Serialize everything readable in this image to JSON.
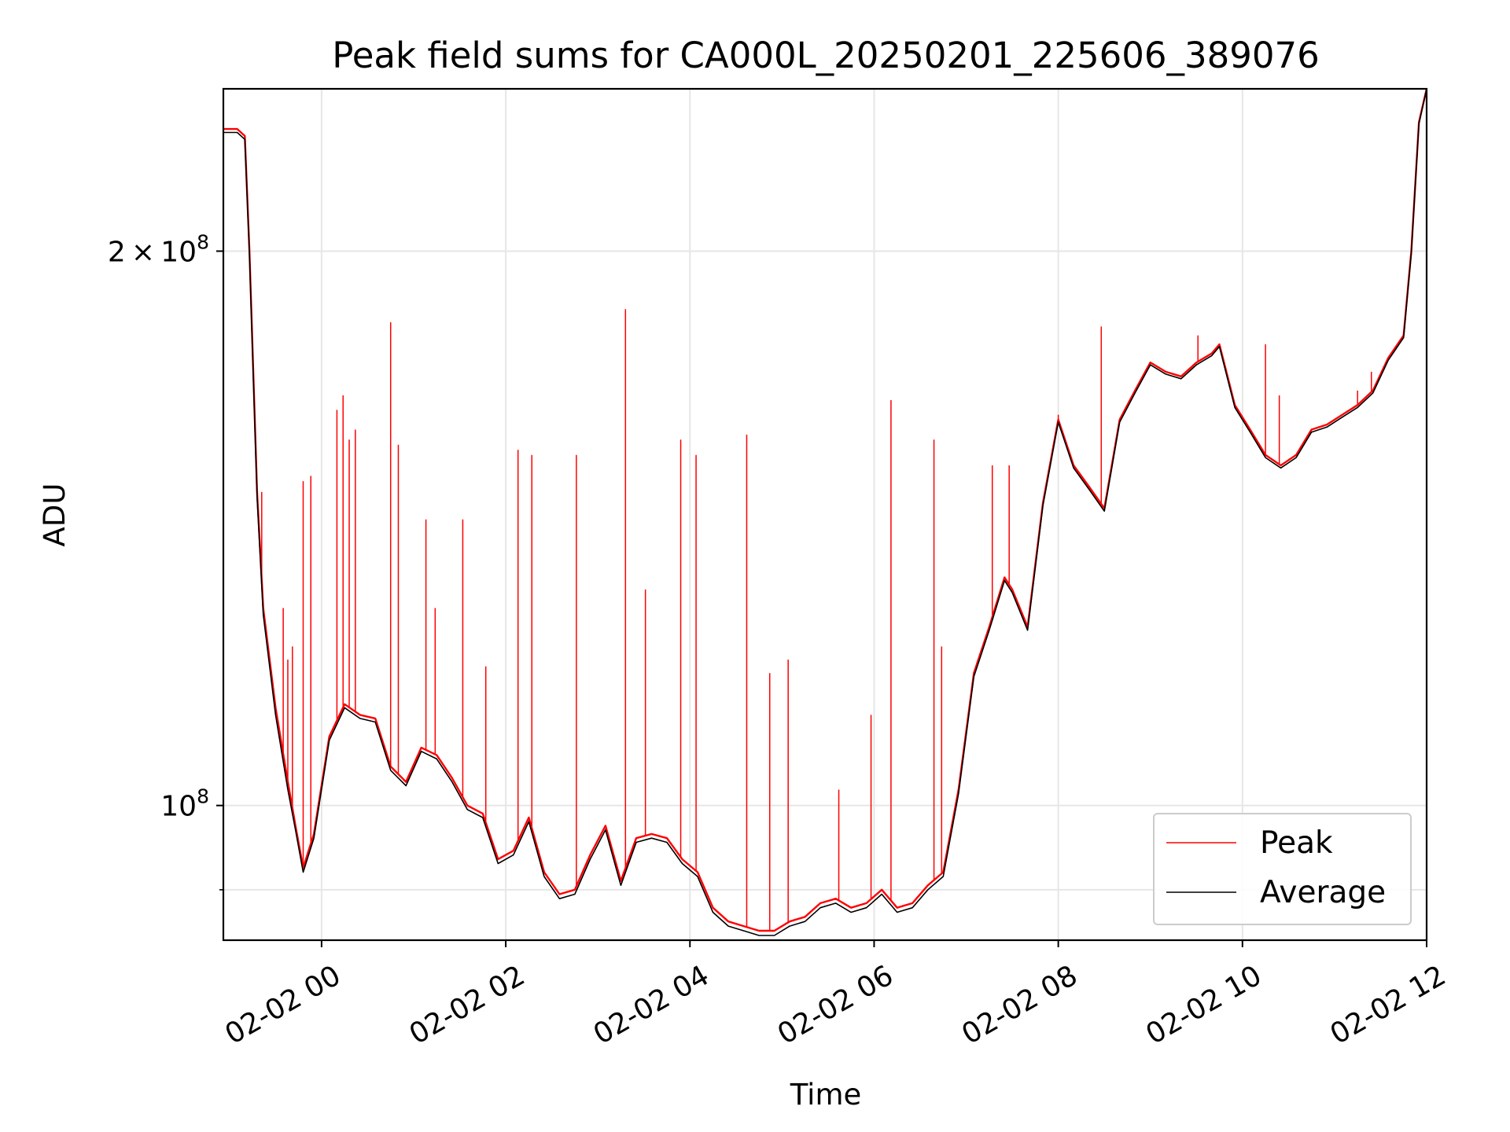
{
  "chart_data": {
    "type": "line",
    "title": "Peak field sums for CA000L_20250201_225606_389076",
    "xlabel": "Time",
    "ylabel": "ADU",
    "yscale": "log",
    "grid": true,
    "legend_position": "lower-right",
    "x_range": [
      "2025-02-01 22:56",
      "2025-02-02 12:00"
    ],
    "ylim": [
      84500000,
      245000000
    ],
    "xticks": [
      "02-02 00",
      "02-02 02",
      "02-02 04",
      "02-02 06",
      "02-02 08",
      "02-02 10",
      "02-02 12"
    ],
    "xtick_times": [
      "2025-02-02 00:00",
      "2025-02-02 02:00",
      "2025-02-02 04:00",
      "2025-02-02 06:00",
      "2025-02-02 08:00",
      "2025-02-02 10:00",
      "2025-02-02 12:00"
    ],
    "yticks": [
      {
        "value": 200000000,
        "mantissa": "2",
        "times": "×",
        "base": "10",
        "exp": "8"
      },
      {
        "value": 100000000,
        "mantissa": "",
        "times": "",
        "base": "10",
        "exp": "8"
      }
    ],
    "series": [
      {
        "name": "Peak",
        "color": "#ff0000",
        "x": [
          "2025-02-01 22:56",
          "2025-02-01 23:05",
          "2025-02-01 23:10",
          "2025-02-01 23:13",
          "2025-02-01 23:18",
          "2025-02-01 23:22",
          "2025-02-01 23:30",
          "2025-02-01 23:38",
          "2025-02-01 23:43",
          "2025-02-01 23:48",
          "2025-02-01 23:55",
          "2025-02-02 00:05",
          "2025-02-02 00:15",
          "2025-02-02 00:25",
          "2025-02-02 00:35",
          "2025-02-02 00:45",
          "2025-02-02 00:55",
          "2025-02-02 01:05",
          "2025-02-02 01:15",
          "2025-02-02 01:25",
          "2025-02-02 01:35",
          "2025-02-02 01:45",
          "2025-02-02 01:55",
          "2025-02-02 02:05",
          "2025-02-02 02:15",
          "2025-02-02 02:25",
          "2025-02-02 02:35",
          "2025-02-02 02:45",
          "2025-02-02 02:55",
          "2025-02-02 03:05",
          "2025-02-02 03:15",
          "2025-02-02 03:25",
          "2025-02-02 03:35",
          "2025-02-02 03:45",
          "2025-02-02 03:55",
          "2025-02-02 04:05",
          "2025-02-02 04:15",
          "2025-02-02 04:25",
          "2025-02-02 04:35",
          "2025-02-02 04:45",
          "2025-02-02 04:55",
          "2025-02-02 05:05",
          "2025-02-02 05:15",
          "2025-02-02 05:25",
          "2025-02-02 05:35",
          "2025-02-02 05:45",
          "2025-02-02 05:55",
          "2025-02-02 06:05",
          "2025-02-02 06:15",
          "2025-02-02 06:25",
          "2025-02-02 06:35",
          "2025-02-02 06:45",
          "2025-02-02 06:55",
          "2025-02-02 07:05",
          "2025-02-02 07:15",
          "2025-02-02 07:25",
          "2025-02-02 07:30",
          "2025-02-02 07:40",
          "2025-02-02 07:50",
          "2025-02-02 08:00",
          "2025-02-02 08:10",
          "2025-02-02 08:20",
          "2025-02-02 08:30",
          "2025-02-02 08:40",
          "2025-02-02 08:50",
          "2025-02-02 09:00",
          "2025-02-02 09:10",
          "2025-02-02 09:20",
          "2025-02-02 09:30",
          "2025-02-02 09:40",
          "2025-02-02 09:45",
          "2025-02-02 09:55",
          "2025-02-02 10:05",
          "2025-02-02 10:15",
          "2025-02-02 10:25",
          "2025-02-02 10:35",
          "2025-02-02 10:45",
          "2025-02-02 10:55",
          "2025-02-02 11:05",
          "2025-02-02 11:15",
          "2025-02-02 11:25",
          "2025-02-02 11:35",
          "2025-02-02 11:45",
          "2025-02-02 11:50",
          "2025-02-02 11:55",
          "2025-02-02 12:00"
        ],
        "y": [
          233000000,
          233000000,
          231000000,
          200000000,
          148000000,
          128000000,
          113000000,
          103000000,
          97500000,
          92500000,
          96500000,
          109000000,
          113500000,
          112000000,
          111500000,
          105000000,
          103000000,
          107500000,
          106500000,
          103500000,
          100000000,
          99000000,
          93500000,
          94500000,
          98500000,
          92000000,
          89500000,
          90000000,
          94000000,
          97500000,
          91000000,
          96000000,
          96500000,
          96000000,
          93500000,
          92000000,
          88000000,
          86500000,
          86000000,
          85500000,
          85500000,
          86500000,
          87000000,
          88500000,
          89000000,
          88000000,
          88500000,
          90000000,
          88000000,
          88500000,
          90500000,
          92000000,
          102000000,
          118000000,
          125000000,
          133000000,
          131000000,
          125000000,
          146000000,
          162000000,
          153000000,
          149000000,
          145000000,
          162000000,
          168000000,
          174000000,
          172000000,
          171000000,
          174000000,
          176000000,
          178000000,
          165000000,
          160000000,
          155000000,
          153000000,
          155000000,
          160000000,
          161000000,
          163000000,
          165000000,
          168000000,
          175000000,
          180000000,
          200000000,
          235000000,
          245000000
        ]
      },
      {
        "name": "Average",
        "color": "#000000",
        "x": [
          "2025-02-01 22:56",
          "2025-02-01 23:05",
          "2025-02-01 23:10",
          "2025-02-01 23:13",
          "2025-02-01 23:18",
          "2025-02-01 23:22",
          "2025-02-01 23:30",
          "2025-02-01 23:38",
          "2025-02-01 23:43",
          "2025-02-01 23:48",
          "2025-02-01 23:55",
          "2025-02-02 00:05",
          "2025-02-02 00:15",
          "2025-02-02 00:25",
          "2025-02-02 00:35",
          "2025-02-02 00:45",
          "2025-02-02 00:55",
          "2025-02-02 01:05",
          "2025-02-02 01:15",
          "2025-02-02 01:25",
          "2025-02-02 01:35",
          "2025-02-02 01:45",
          "2025-02-02 01:55",
          "2025-02-02 02:05",
          "2025-02-02 02:15",
          "2025-02-02 02:25",
          "2025-02-02 02:35",
          "2025-02-02 02:45",
          "2025-02-02 02:55",
          "2025-02-02 03:05",
          "2025-02-02 03:15",
          "2025-02-02 03:25",
          "2025-02-02 03:35",
          "2025-02-02 03:45",
          "2025-02-02 03:55",
          "2025-02-02 04:05",
          "2025-02-02 04:15",
          "2025-02-02 04:25",
          "2025-02-02 04:35",
          "2025-02-02 04:45",
          "2025-02-02 04:55",
          "2025-02-02 05:05",
          "2025-02-02 05:15",
          "2025-02-02 05:25",
          "2025-02-02 05:35",
          "2025-02-02 05:45",
          "2025-02-02 05:55",
          "2025-02-02 06:05",
          "2025-02-02 06:15",
          "2025-02-02 06:25",
          "2025-02-02 06:35",
          "2025-02-02 06:45",
          "2025-02-02 06:55",
          "2025-02-02 07:05",
          "2025-02-02 07:15",
          "2025-02-02 07:25",
          "2025-02-02 07:30",
          "2025-02-02 07:40",
          "2025-02-02 07:50",
          "2025-02-02 08:00",
          "2025-02-02 08:10",
          "2025-02-02 08:20",
          "2025-02-02 08:30",
          "2025-02-02 08:40",
          "2025-02-02 08:50",
          "2025-02-02 09:00",
          "2025-02-02 09:10",
          "2025-02-02 09:20",
          "2025-02-02 09:30",
          "2025-02-02 09:40",
          "2025-02-02 09:45",
          "2025-02-02 09:55",
          "2025-02-02 10:05",
          "2025-02-02 10:15",
          "2025-02-02 10:25",
          "2025-02-02 10:35",
          "2025-02-02 10:45",
          "2025-02-02 10:55",
          "2025-02-02 11:05",
          "2025-02-02 11:15",
          "2025-02-02 11:25",
          "2025-02-02 11:35",
          "2025-02-02 11:45",
          "2025-02-02 11:50",
          "2025-02-02 11:55",
          "2025-02-02 12:00"
        ],
        "y": [
          232000000,
          232000000,
          230000000,
          199000000,
          147000000,
          127000000,
          112000000,
          102000000,
          97000000,
          92000000,
          96000000,
          108500000,
          113000000,
          111500000,
          111000000,
          104500000,
          102500000,
          107000000,
          106000000,
          103000000,
          99500000,
          98500000,
          93000000,
          94000000,
          98000000,
          91500000,
          89000000,
          89500000,
          93500000,
          97000000,
          90500000,
          95500000,
          96000000,
          95500000,
          93000000,
          91500000,
          87500000,
          86000000,
          85500000,
          85000000,
          85000000,
          86000000,
          86500000,
          88000000,
          88500000,
          87500000,
          88000000,
          89500000,
          87500000,
          88000000,
          90000000,
          91500000,
          101500000,
          117500000,
          124500000,
          132500000,
          130500000,
          124500000,
          145500000,
          161500000,
          152500000,
          148500000,
          144500000,
          161500000,
          167500000,
          173500000,
          171500000,
          170500000,
          173500000,
          175500000,
          177500000,
          164500000,
          159500000,
          154500000,
          152500000,
          154500000,
          159500000,
          160500000,
          162500000,
          164500000,
          167500000,
          174500000,
          179500000,
          199500000,
          234500000,
          245000000
        ]
      }
    ],
    "spikes": {
      "series": "Peak",
      "x": [
        "2025-02-01 23:21",
        "2025-02-01 23:35",
        "2025-02-01 23:38",
        "2025-02-01 23:41",
        "2025-02-01 23:48",
        "2025-02-01 23:53",
        "2025-02-02 00:10",
        "2025-02-02 00:14",
        "2025-02-02 00:18",
        "2025-02-02 00:22",
        "2025-02-02 00:45",
        "2025-02-02 00:50",
        "2025-02-02 01:08",
        "2025-02-02 01:14",
        "2025-02-02 01:32",
        "2025-02-02 01:47",
        "2025-02-02 02:08",
        "2025-02-02 02:17",
        "2025-02-02 02:46",
        "2025-02-02 03:18",
        "2025-02-02 03:31",
        "2025-02-02 03:54",
        "2025-02-02 04:04",
        "2025-02-02 04:37",
        "2025-02-02 04:52",
        "2025-02-02 05:04",
        "2025-02-02 05:37",
        "2025-02-02 05:58",
        "2025-02-02 06:11",
        "2025-02-02 06:39",
        "2025-02-02 06:44",
        "2025-02-02 07:05",
        "2025-02-02 07:17",
        "2025-02-02 07:28",
        "2025-02-02 08:00",
        "2025-02-02 08:28",
        "2025-02-02 09:31",
        "2025-02-02 10:15",
        "2025-02-02 10:24",
        "2025-02-02 11:15",
        "2025-02-02 11:24"
      ],
      "y": [
        148000000,
        128000000,
        120000000,
        122000000,
        150000000,
        151000000,
        164000000,
        167000000,
        158000000,
        160000000,
        183000000,
        157000000,
        143000000,
        128000000,
        143000000,
        119000000,
        156000000,
        155000000,
        155000000,
        186000000,
        131000000,
        158000000,
        155000000,
        159000000,
        118000000,
        120000000,
        102000000,
        112000000,
        166000000,
        158000000,
        122000000,
        118000000,
        153000000,
        153000000,
        163000000,
        182000000,
        180000000,
        178000000,
        167000000,
        168000000,
        172000000
      ]
    }
  }
}
